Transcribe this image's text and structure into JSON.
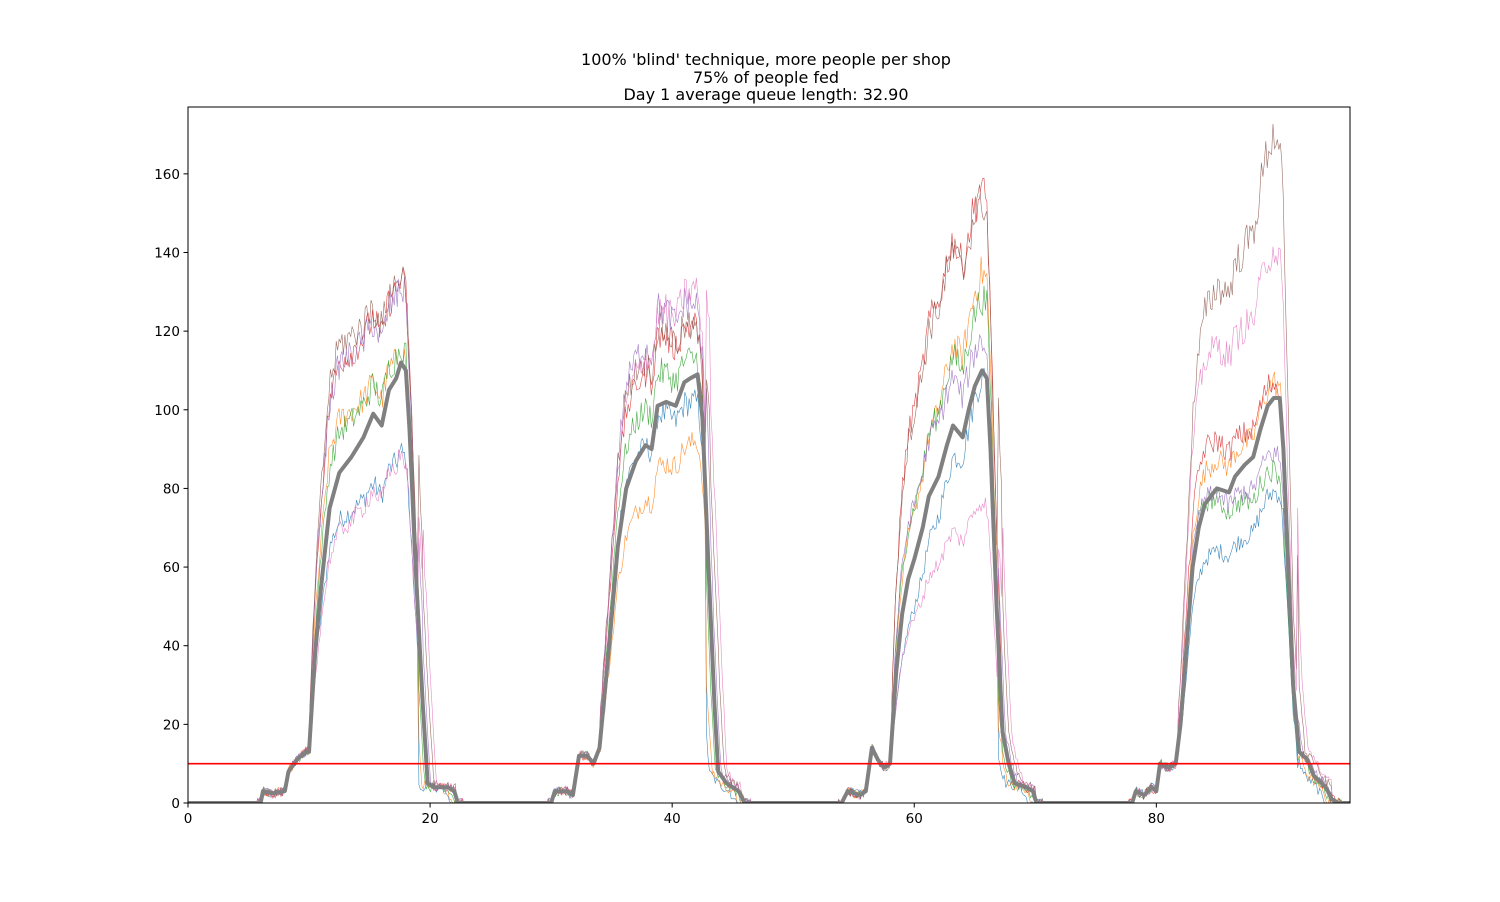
{
  "chart_data": {
    "type": "line",
    "title_lines": [
      "100% 'blind' technique, more people per shop",
      "75% of people fed",
      "Day 1 average queue length: 32.90"
    ],
    "xlabel": "",
    "ylabel": "",
    "xlim": [
      0,
      96
    ],
    "ylim": [
      0,
      177
    ],
    "xticks": [
      0,
      20,
      40,
      60,
      80
    ],
    "yticks": [
      0,
      20,
      40,
      60,
      80,
      100,
      120,
      140,
      160
    ],
    "grid": false,
    "legend": "none",
    "threshold": {
      "value": 10,
      "color": "#ff0000"
    },
    "average": {
      "color": "#808080",
      "points": [
        [
          0,
          0
        ],
        [
          6,
          0
        ],
        [
          6.2,
          3
        ],
        [
          7,
          2.5
        ],
        [
          8,
          3
        ],
        [
          8.3,
          8
        ],
        [
          9,
          11
        ],
        [
          9.7,
          13
        ],
        [
          10,
          13
        ],
        [
          10.5,
          38
        ],
        [
          11,
          55
        ],
        [
          11.7,
          75
        ],
        [
          12.5,
          84
        ],
        [
          13.5,
          88
        ],
        [
          14.5,
          93
        ],
        [
          15.3,
          99
        ],
        [
          16,
          96
        ],
        [
          16.6,
          105
        ],
        [
          17.2,
          108
        ],
        [
          17.6,
          112
        ],
        [
          18,
          110
        ],
        [
          18.3,
          95
        ],
        [
          18.8,
          60
        ],
        [
          19.4,
          25
        ],
        [
          19.8,
          5
        ],
        [
          20.3,
          4
        ],
        [
          21.5,
          4
        ],
        [
          22,
          3
        ],
        [
          22.3,
          0
        ],
        [
          30,
          0
        ],
        [
          30.3,
          3
        ],
        [
          31.3,
          3
        ],
        [
          31.8,
          2
        ],
        [
          32.3,
          12
        ],
        [
          33,
          12
        ],
        [
          33.5,
          10
        ],
        [
          34,
          14
        ],
        [
          34.8,
          40
        ],
        [
          35.5,
          65
        ],
        [
          36.2,
          80
        ],
        [
          37,
          87
        ],
        [
          37.8,
          91
        ],
        [
          38.3,
          90
        ],
        [
          38.8,
          101
        ],
        [
          39.5,
          102
        ],
        [
          40.3,
          101
        ],
        [
          41,
          107
        ],
        [
          41.5,
          108
        ],
        [
          42.1,
          109
        ],
        [
          42.5,
          98
        ],
        [
          43,
          60
        ],
        [
          43.5,
          25
        ],
        [
          43.8,
          8
        ],
        [
          44.5,
          5
        ],
        [
          45.5,
          3
        ],
        [
          46,
          0
        ],
        [
          54,
          0
        ],
        [
          54.5,
          3
        ],
        [
          55.5,
          2
        ],
        [
          56,
          3
        ],
        [
          56.5,
          14
        ],
        [
          57,
          11
        ],
        [
          57.5,
          9
        ],
        [
          58,
          10
        ],
        [
          58.5,
          33
        ],
        [
          59,
          48
        ],
        [
          59.5,
          57
        ],
        [
          60,
          62
        ],
        [
          60.7,
          70
        ],
        [
          61.2,
          78
        ],
        [
          62,
          83
        ],
        [
          62.7,
          91
        ],
        [
          63.2,
          96
        ],
        [
          64,
          93
        ],
        [
          64.5,
          100
        ],
        [
          65,
          106
        ],
        [
          65.6,
          110
        ],
        [
          66,
          108
        ],
        [
          66.3,
          90
        ],
        [
          66.8,
          50
        ],
        [
          67.3,
          18
        ],
        [
          67.8,
          10
        ],
        [
          68.3,
          5
        ],
        [
          69.3,
          4
        ],
        [
          69.8,
          3
        ],
        [
          70.1,
          0
        ],
        [
          78,
          0
        ],
        [
          78.3,
          3
        ],
        [
          79,
          2
        ],
        [
          79.6,
          4
        ],
        [
          80,
          3
        ],
        [
          80.3,
          10
        ],
        [
          81,
          9
        ],
        [
          81.6,
          10
        ],
        [
          82,
          20
        ],
        [
          82.5,
          40
        ],
        [
          83,
          60
        ],
        [
          83.5,
          70
        ],
        [
          84,
          76
        ],
        [
          85,
          80
        ],
        [
          86,
          79
        ],
        [
          86.5,
          83
        ],
        [
          87.3,
          86
        ],
        [
          88,
          88
        ],
        [
          88.6,
          95
        ],
        [
          89.2,
          101
        ],
        [
          89.7,
          103
        ],
        [
          90.2,
          103
        ],
        [
          90.5,
          90
        ],
        [
          90.9,
          60
        ],
        [
          91.3,
          30
        ],
        [
          91.8,
          13
        ],
        [
          92.5,
          11
        ],
        [
          93,
          7
        ],
        [
          94,
          4
        ],
        [
          94.5,
          1
        ],
        [
          95,
          0
        ],
        [
          96,
          0
        ]
      ]
    },
    "thin_series": [
      {
        "color": "#1f77b4",
        "peaks": [
          88,
          101,
          112,
          78
        ],
        "mids": [
          70,
          82,
          55,
          60
        ]
      },
      {
        "color": "#ff7f0e",
        "peaks": [
          112,
          92,
          136,
          105
        ],
        "mids": [
          98,
          65,
          90,
          82
        ]
      },
      {
        "color": "#2ca02c",
        "peaks": [
          115,
          112,
          128,
          80
        ],
        "mids": [
          92,
          90,
          95,
          78
        ]
      },
      {
        "color": "#d62728",
        "peaks": [
          130,
          120,
          152,
          103
        ],
        "mids": [
          112,
          100,
          132,
          90
        ]
      },
      {
        "color": "#9467bd",
        "peaks": [
          128,
          125,
          115,
          85
        ],
        "mids": [
          112,
          108,
          100,
          78
        ]
      },
      {
        "color": "#8c564b",
        "peaks": [
          131,
          118,
          150,
          170
        ],
        "mids": [
          118,
          107,
          130,
          118
        ]
      },
      {
        "color": "#e377c2",
        "peaks": [
          88,
          130,
          76,
          138
        ],
        "mids": [
          66,
          100,
          60,
          110
        ]
      }
    ]
  }
}
